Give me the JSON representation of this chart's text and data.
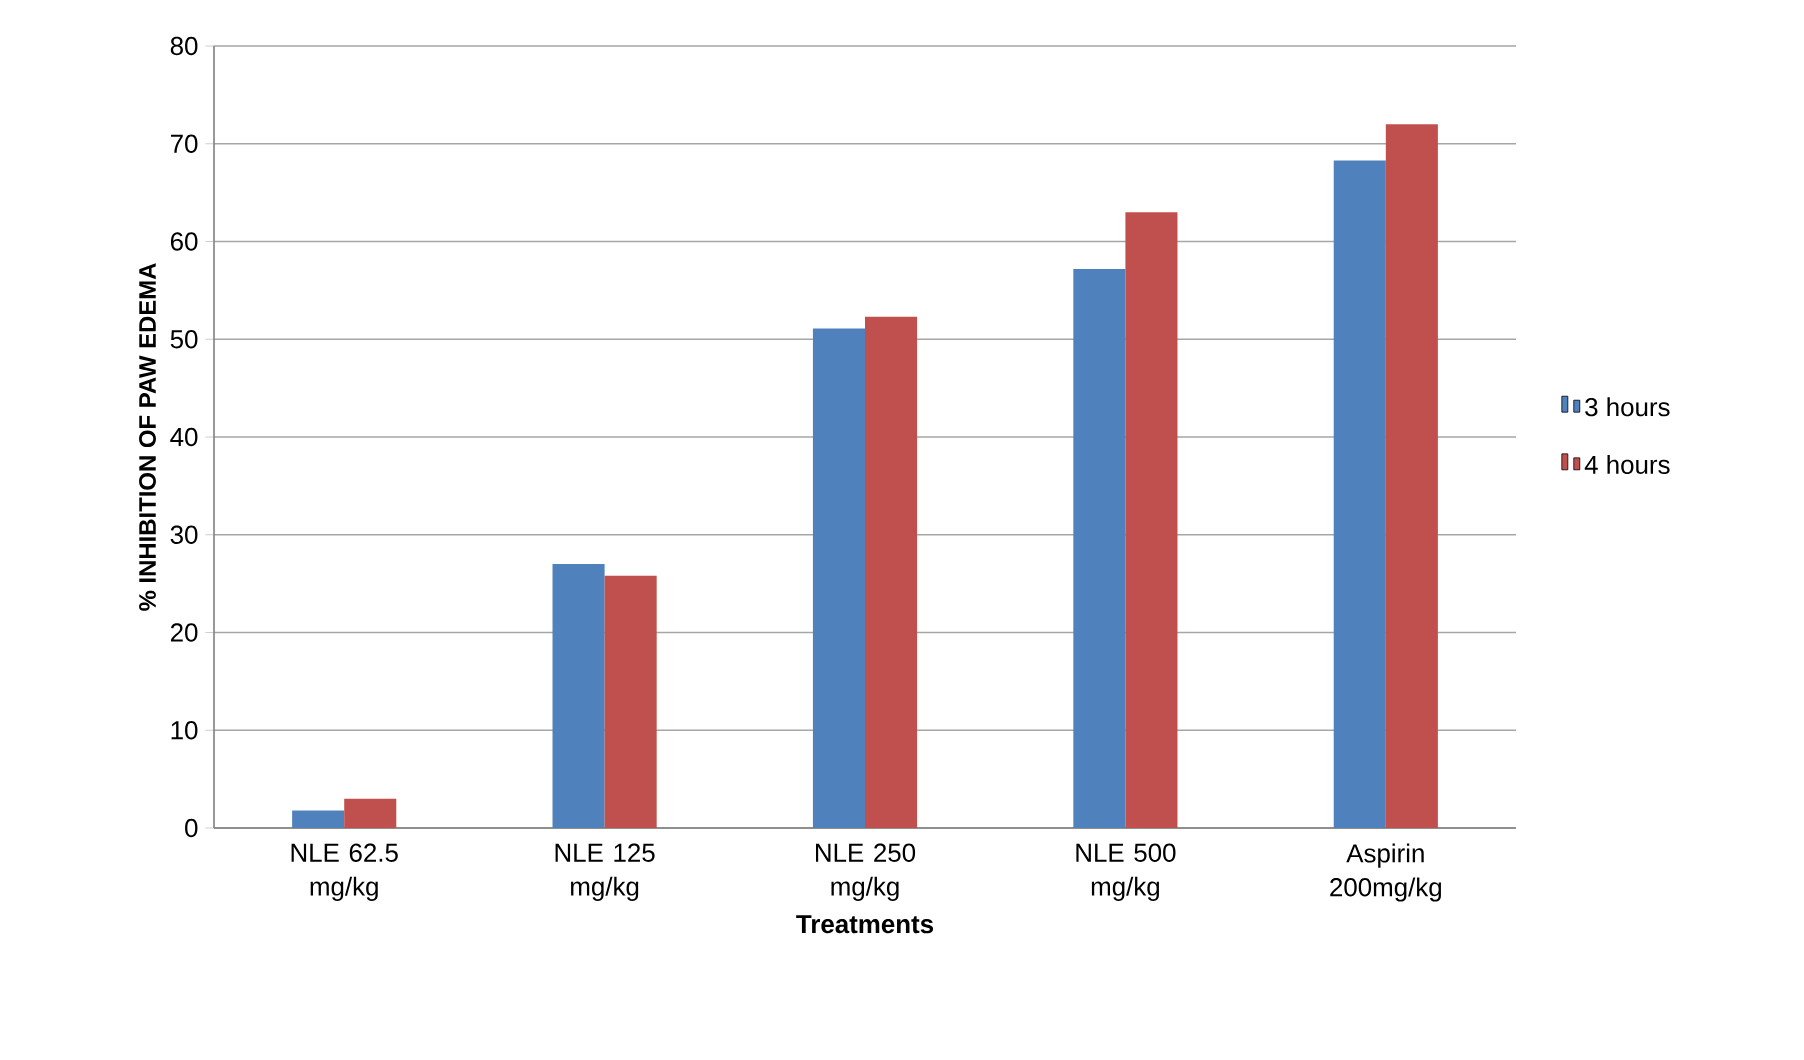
{
  "chart_data": {
    "type": "bar",
    "xlabel": "Treatments",
    "ylabel": "% INHIBITION  OF PAW EDEMA",
    "categories": [
      "NLE 62.5 mg/kg",
      "NLE 125 mg/kg",
      "NLE 250 mg/kg",
      "NLE 500 mg/kg",
      "Aspirin 200mg/kg"
    ],
    "series": [
      {
        "name": "3 hours",
        "color": "#4f81bd",
        "values": [
          1.8,
          27.0,
          51.1,
          57.2,
          68.3
        ]
      },
      {
        "name": "4 hours",
        "color": "#c0504d",
        "values": [
          3.0,
          25.8,
          52.3,
          63.0,
          72.0
        ]
      }
    ],
    "ylim": [
      0,
      80
    ],
    "yticks": [
      0,
      10,
      20,
      30,
      40,
      50,
      60,
      70,
      80
    ],
    "grid": "y",
    "legend": "right"
  }
}
